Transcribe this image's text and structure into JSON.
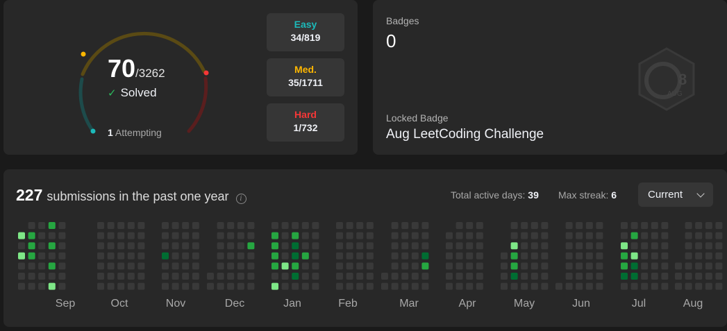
{
  "progress": {
    "solved": "70",
    "total": "/3262",
    "solved_label": "Solved",
    "attempting_count": "1",
    "attempting_label": "Attempting",
    "easy": {
      "label": "Easy",
      "value": "34/819"
    },
    "medium": {
      "label": "Med.",
      "value": "35/1711"
    },
    "hard": {
      "label": "Hard",
      "value": "1/732"
    }
  },
  "badges": {
    "title": "Badges",
    "count": "0",
    "locked_title": "Locked Badge",
    "locked_name": "Aug LeetCoding Challenge",
    "icon_number": "8",
    "icon_month": "AUG"
  },
  "calendar": {
    "submissions": "227",
    "submissions_text": "submissions in the past one year",
    "active_label": "Total active days:",
    "active_value": "39",
    "streak_label": "Max streak:",
    "streak_value": "6",
    "dropdown_value": "Current",
    "months": [
      "Sep",
      "Oct",
      "Nov",
      "Dec",
      "Jan",
      "Feb",
      "Mar",
      "Apr",
      "May",
      "Jun",
      "Jul",
      "Aug"
    ],
    "colors": {
      "empty": "#393939",
      "l1": "#0e4429",
      "l2": "#006d32",
      "l3": "#26a641",
      "l4": "#7ee787"
    }
  }
}
